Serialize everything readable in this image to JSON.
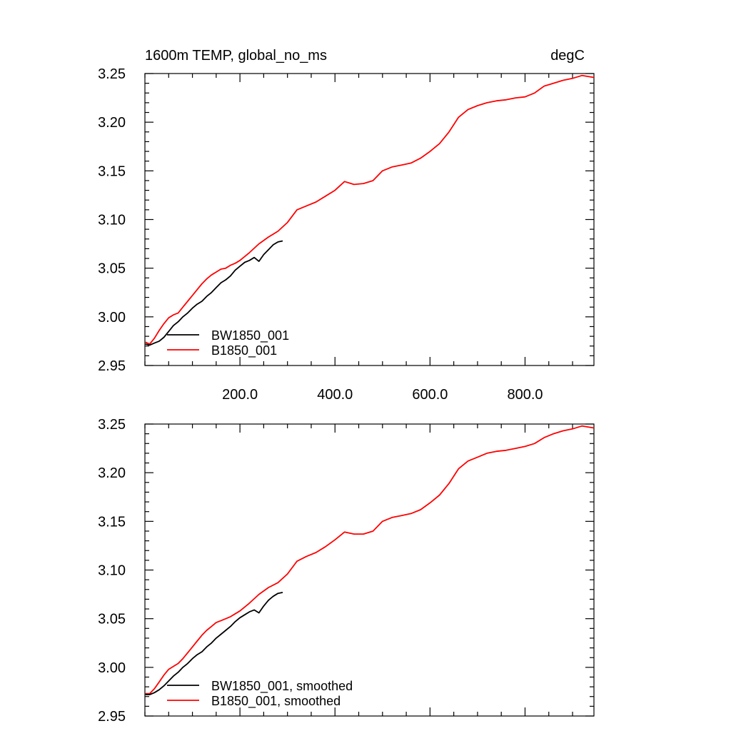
{
  "chart_data": [
    {
      "type": "line",
      "title": "1600m TEMP, global_no_ms",
      "unit_label": "degC",
      "xlabel": "",
      "ylabel": "",
      "xlim": [
        0,
        945
      ],
      "ylim": [
        2.95,
        3.25
      ],
      "x_ticks": [
        200,
        400,
        600,
        800
      ],
      "x_tick_labels": [
        "200.0",
        "400.0",
        "600.0",
        "800.0"
      ],
      "y_ticks": [
        2.95,
        3.0,
        3.05,
        3.1,
        3.15,
        3.2,
        3.25
      ],
      "y_tick_labels": [
        "2.95",
        "3.00",
        "3.05",
        "3.10",
        "3.15",
        "3.20",
        "3.25"
      ],
      "grid": false,
      "legend_position": "bottom-left",
      "series": [
        {
          "name": "BW1850_001",
          "color": "#000000",
          "x": [
            1,
            10,
            20,
            30,
            40,
            50,
            60,
            70,
            80,
            90,
            100,
            110,
            120,
            130,
            140,
            150,
            160,
            170,
            180,
            190,
            200,
            210,
            220,
            230,
            240,
            250,
            260,
            270,
            280,
            290
          ],
          "y": [
            2.972,
            2.971,
            2.973,
            2.975,
            2.979,
            2.985,
            2.991,
            2.995,
            3.0,
            3.004,
            3.009,
            3.013,
            3.016,
            3.021,
            3.025,
            3.03,
            3.035,
            3.038,
            3.042,
            3.048,
            3.052,
            3.056,
            3.058,
            3.061,
            3.057,
            3.064,
            3.069,
            3.074,
            3.077,
            3.078
          ]
        },
        {
          "name": "B1850_001",
          "color": "#ff0000",
          "x": [
            1,
            10,
            20,
            30,
            40,
            50,
            60,
            70,
            80,
            90,
            100,
            110,
            120,
            130,
            140,
            150,
            160,
            170,
            180,
            190,
            200,
            220,
            240,
            260,
            280,
            300,
            320,
            340,
            360,
            380,
            400,
            420,
            440,
            460,
            480,
            500,
            520,
            540,
            560,
            580,
            600,
            620,
            640,
            660,
            680,
            700,
            720,
            740,
            760,
            780,
            800,
            820,
            840,
            860,
            880,
            900,
            920,
            945
          ],
          "y": [
            2.974,
            2.972,
            2.978,
            2.986,
            2.993,
            2.999,
            3.002,
            3.004,
            3.01,
            3.016,
            3.022,
            3.028,
            3.034,
            3.039,
            3.043,
            3.046,
            3.049,
            3.05,
            3.053,
            3.055,
            3.058,
            3.066,
            3.075,
            3.082,
            3.088,
            3.097,
            3.11,
            3.114,
            3.118,
            3.124,
            3.13,
            3.139,
            3.136,
            3.137,
            3.14,
            3.15,
            3.154,
            3.156,
            3.158,
            3.163,
            3.17,
            3.178,
            3.19,
            3.205,
            3.213,
            3.217,
            3.22,
            3.222,
            3.223,
            3.225,
            3.226,
            3.23,
            3.237,
            3.24,
            3.243,
            3.245,
            3.248,
            3.246
          ]
        }
      ]
    },
    {
      "type": "line",
      "title": "",
      "xlabel": "",
      "ylabel": "",
      "xlim": [
        0,
        945
      ],
      "ylim": [
        2.95,
        3.25
      ],
      "x_ticks": [
        200,
        400,
        600,
        800
      ],
      "y_ticks": [
        2.95,
        3.0,
        3.05,
        3.1,
        3.15,
        3.2,
        3.25
      ],
      "y_tick_labels": [
        "2.95",
        "3.00",
        "3.05",
        "3.10",
        "3.15",
        "3.20",
        "3.25"
      ],
      "grid": false,
      "legend_position": "bottom-left",
      "series": [
        {
          "name": "BW1850_001, smoothed",
          "color": "#000000",
          "x": [
            1,
            10,
            20,
            30,
            40,
            50,
            60,
            70,
            80,
            90,
            100,
            110,
            120,
            130,
            140,
            150,
            160,
            170,
            180,
            190,
            200,
            210,
            220,
            230,
            240,
            250,
            260,
            270,
            280,
            290
          ],
          "y": [
            2.972,
            2.972,
            2.974,
            2.977,
            2.981,
            2.986,
            2.991,
            2.995,
            3.0,
            3.004,
            3.009,
            3.013,
            3.016,
            3.021,
            3.025,
            3.03,
            3.034,
            3.038,
            3.042,
            3.047,
            3.051,
            3.054,
            3.057,
            3.059,
            3.056,
            3.063,
            3.069,
            3.073,
            3.076,
            3.077
          ]
        },
        {
          "name": "B1850_001, smoothed",
          "color": "#ff0000",
          "x": [
            1,
            10,
            20,
            30,
            40,
            50,
            60,
            70,
            80,
            90,
            100,
            110,
            120,
            130,
            140,
            150,
            160,
            170,
            180,
            190,
            200,
            220,
            240,
            260,
            280,
            300,
            320,
            340,
            360,
            380,
            400,
            420,
            440,
            460,
            480,
            500,
            520,
            540,
            560,
            580,
            600,
            620,
            640,
            660,
            680,
            700,
            720,
            740,
            760,
            780,
            800,
            820,
            840,
            860,
            880,
            900,
            920,
            945
          ],
          "y": [
            2.973,
            2.973,
            2.978,
            2.985,
            2.992,
            2.998,
            3.001,
            3.004,
            3.009,
            3.015,
            3.021,
            3.027,
            3.033,
            3.038,
            3.042,
            3.046,
            3.048,
            3.05,
            3.052,
            3.055,
            3.058,
            3.066,
            3.075,
            3.082,
            3.087,
            3.096,
            3.109,
            3.114,
            3.118,
            3.124,
            3.131,
            3.139,
            3.137,
            3.137,
            3.14,
            3.15,
            3.154,
            3.156,
            3.158,
            3.162,
            3.169,
            3.177,
            3.189,
            3.204,
            3.212,
            3.216,
            3.22,
            3.222,
            3.223,
            3.225,
            3.227,
            3.23,
            3.236,
            3.24,
            3.243,
            3.245,
            3.248,
            3.246
          ]
        }
      ]
    }
  ]
}
